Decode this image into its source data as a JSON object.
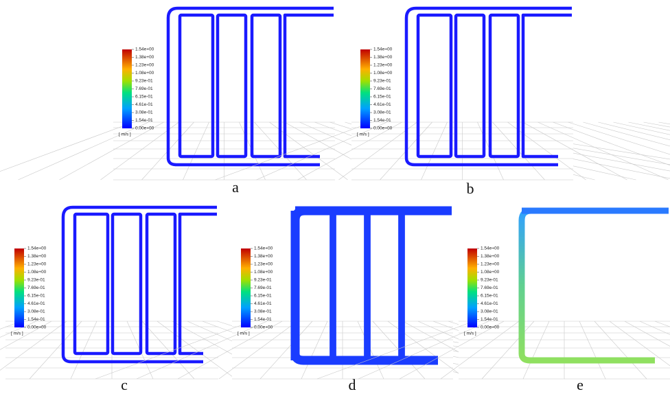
{
  "colorbar": {
    "unit": "[ m/s ]",
    "ticks": [
      "1.54e+00",
      "1.38e+00",
      "1.23e+00",
      "1.08e+00",
      "9.23e-01",
      "7.69e-01",
      "6.15e-01",
      "4.61e-01",
      "3.08e-01",
      "1.54e-01",
      "0.00e+00"
    ]
  },
  "panels": [
    {
      "label": "a"
    },
    {
      "label": "b"
    },
    {
      "label": "c"
    },
    {
      "label": "d"
    },
    {
      "label": "e"
    }
  ]
}
